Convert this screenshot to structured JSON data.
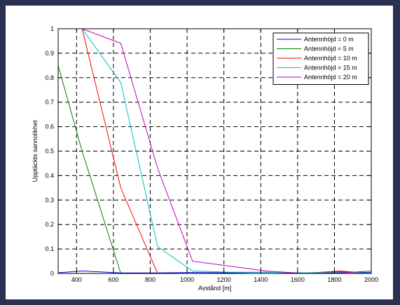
{
  "chart_data": {
    "type": "line",
    "title": "",
    "xlabel": "Avstånd [m]",
    "ylabel": "Upptäckts sannolikhet",
    "xlim": [
      300,
      2000
    ],
    "ylim": [
      0,
      1
    ],
    "xticks": [
      "400",
      "600",
      "800",
      "1000",
      "1200",
      "1400",
      "1600",
      "1800",
      "2000"
    ],
    "yticks": [
      "0",
      "0.1",
      "0.2",
      "0.3",
      "0.4",
      "0.5",
      "0.6",
      "0.7",
      "0.8",
      "0.9",
      "1"
    ],
    "grid": true,
    "legend_placement": "top-right",
    "series": [
      {
        "name": "Antennhöjd = 0 m",
        "color": "#0000ff",
        "x": [
          300,
          430,
          640,
          840,
          1030,
          1230,
          1430,
          1630,
          1830,
          2000
        ],
        "y": [
          0.003,
          0.01,
          0.002,
          0.002,
          0.004,
          0.003,
          0.005,
          0.002,
          0.006,
          0.004
        ]
      },
      {
        "name": "Antennhöjd = 5 m",
        "color": "#008000",
        "x": [
          300,
          430,
          640,
          840,
          1030,
          1230,
          1430,
          1630,
          1830,
          2000
        ],
        "y": [
          0.85,
          0.5,
          0.0,
          0.0,
          0.0,
          0.0,
          0.0,
          0.0,
          0.0,
          0.0
        ]
      },
      {
        "name": "Antennhöjd = 10 m",
        "color": "#ff0000",
        "x": [
          300,
          430,
          640,
          840,
          1030,
          1230,
          1430,
          1630,
          1830,
          2000
        ],
        "y": [
          1.0,
          1.0,
          0.35,
          0.0,
          0.0,
          0.0,
          0.0,
          0.0,
          0.01,
          0.0
        ]
      },
      {
        "name": "Antennhöjd = 15 m",
        "color": "#00bfbf",
        "x": [
          300,
          430,
          640,
          840,
          1030,
          1230,
          1430,
          1630,
          1830,
          2000
        ],
        "y": [
          1.0,
          1.0,
          0.78,
          0.11,
          0.01,
          0.005,
          0.005,
          0.003,
          0.004,
          0.002
        ]
      },
      {
        "name": "Antennhöjd = 20 m",
        "color": "#bf00bf",
        "x": [
          300,
          430,
          640,
          840,
          1030,
          1230,
          1430,
          1630,
          1830,
          2000
        ],
        "y": [
          1.0,
          1.0,
          0.94,
          0.43,
          0.05,
          0.03,
          0.01,
          0.0,
          0.002,
          0.01
        ]
      }
    ]
  }
}
